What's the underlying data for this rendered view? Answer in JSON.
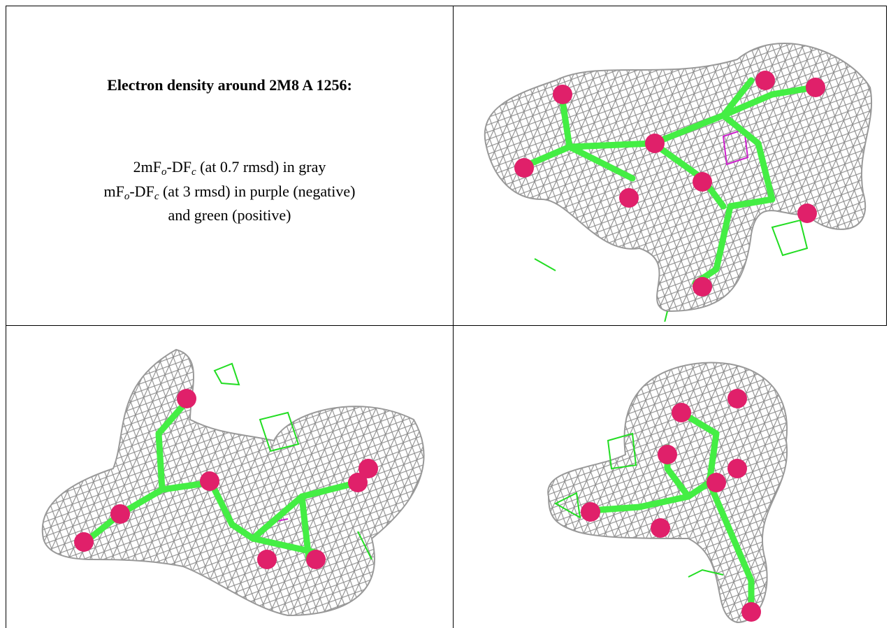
{
  "caption": {
    "title": "Electron density around 2M8 A 1256:",
    "lines": [
      [
        {
          "text": "2mF"
        },
        {
          "sub": "o"
        },
        {
          "text": "-DF"
        },
        {
          "sub": "c"
        },
        {
          "text": " (at 0.7 rmsd) in gray"
        }
      ],
      [
        {
          "text": "mF"
        },
        {
          "sub": "o"
        },
        {
          "text": "-DF"
        },
        {
          "sub": "c"
        },
        {
          "text": " (at 3 rmsd) in purple (negative)"
        }
      ],
      [
        {
          "text": "and green (positive)"
        }
      ]
    ]
  }
}
